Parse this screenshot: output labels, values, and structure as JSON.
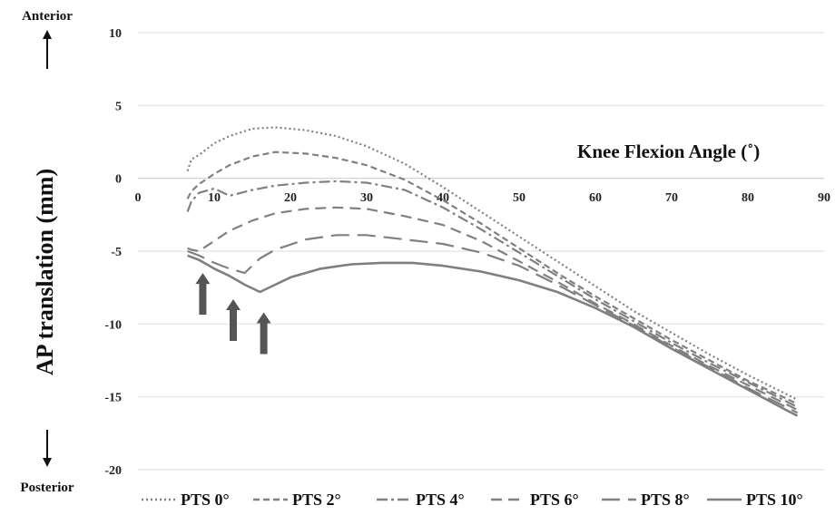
{
  "chart_data": {
    "type": "line",
    "xlabel": "Knee Flexion Angle (˚)",
    "ylabel": "AP translation (mm)",
    "xlim": [
      0,
      90
    ],
    "ylim": [
      -20,
      10
    ],
    "x_ticks": [
      0,
      10,
      20,
      30,
      40,
      50,
      60,
      70,
      80,
      90
    ],
    "y_ticks": [
      10,
      5,
      0,
      -5,
      -10,
      -15,
      -20
    ],
    "grid": "horizontal",
    "legend_position": "bottom",
    "annotations": {
      "top": "Anterior",
      "bottom": "Posterior"
    },
    "arrow_markers_x": [
      8.5,
      12.5,
      16.5
    ],
    "series": [
      {
        "name": "PTS 0°",
        "style": "dotted",
        "color": "#808080",
        "points": [
          [
            6.5,
            0.5
          ],
          [
            7,
            1.3
          ],
          [
            8,
            1.6
          ],
          [
            10,
            2.4
          ],
          [
            12,
            2.9
          ],
          [
            15,
            3.4
          ],
          [
            18,
            3.5
          ],
          [
            22,
            3.3
          ],
          [
            26,
            2.9
          ],
          [
            30,
            2.2
          ],
          [
            35,
            1.0
          ],
          [
            40,
            -0.6
          ],
          [
            45,
            -2.3
          ],
          [
            50,
            -4.0
          ],
          [
            55,
            -5.7
          ],
          [
            60,
            -7.4
          ],
          [
            65,
            -9.1
          ],
          [
            70,
            -10.6
          ],
          [
            75,
            -12.1
          ],
          [
            80,
            -13.5
          ],
          [
            85,
            -14.8
          ],
          [
            86.5,
            -15.2
          ]
        ]
      },
      {
        "name": "PTS 2°",
        "style": "short-dash",
        "color": "#808080",
        "points": [
          [
            6.5,
            -1.4
          ],
          [
            7,
            -0.9
          ],
          [
            8,
            -0.4
          ],
          [
            10,
            0.3
          ],
          [
            12,
            0.9
          ],
          [
            15,
            1.5
          ],
          [
            18,
            1.8
          ],
          [
            22,
            1.7
          ],
          [
            26,
            1.4
          ],
          [
            30,
            0.9
          ],
          [
            35,
            -0.1
          ],
          [
            40,
            -1.5
          ],
          [
            45,
            -3.1
          ],
          [
            50,
            -4.8
          ],
          [
            55,
            -6.5
          ],
          [
            60,
            -8.1
          ],
          [
            65,
            -9.6
          ],
          [
            70,
            -11.1
          ],
          [
            75,
            -12.5
          ],
          [
            80,
            -13.9
          ],
          [
            85,
            -15.1
          ],
          [
            86.5,
            -15.5
          ]
        ]
      },
      {
        "name": "PTS 4°",
        "style": "dash-dot",
        "color": "#808080",
        "points": [
          [
            6.5,
            -2.3
          ],
          [
            7,
            -1.6
          ],
          [
            8,
            -1.0
          ],
          [
            10,
            -0.7
          ],
          [
            12,
            -1.2
          ],
          [
            15,
            -0.8
          ],
          [
            18,
            -0.5
          ],
          [
            22,
            -0.3
          ],
          [
            26,
            -0.2
          ],
          [
            30,
            -0.3
          ],
          [
            35,
            -0.8
          ],
          [
            40,
            -2.0
          ],
          [
            45,
            -3.5
          ],
          [
            50,
            -5.1
          ],
          [
            55,
            -6.7
          ],
          [
            60,
            -8.3
          ],
          [
            65,
            -9.8
          ],
          [
            70,
            -11.3
          ],
          [
            75,
            -12.7
          ],
          [
            80,
            -14.0
          ],
          [
            85,
            -15.3
          ],
          [
            86.5,
            -15.7
          ]
        ]
      },
      {
        "name": "PTS 6°",
        "style": "dash",
        "color": "#808080",
        "points": [
          [
            6.5,
            -4.8
          ],
          [
            7,
            -4.9
          ],
          [
            8,
            -5.0
          ],
          [
            10,
            -4.3
          ],
          [
            12,
            -3.6
          ],
          [
            15,
            -2.9
          ],
          [
            18,
            -2.4
          ],
          [
            22,
            -2.1
          ],
          [
            26,
            -2.0
          ],
          [
            30,
            -2.1
          ],
          [
            35,
            -2.6
          ],
          [
            40,
            -3.2
          ],
          [
            45,
            -4.3
          ],
          [
            50,
            -5.7
          ],
          [
            55,
            -7.1
          ],
          [
            60,
            -8.6
          ],
          [
            65,
            -10.0
          ],
          [
            70,
            -11.5
          ],
          [
            75,
            -12.9
          ],
          [
            80,
            -14.2
          ],
          [
            85,
            -15.5
          ],
          [
            86.5,
            -15.9
          ]
        ]
      },
      {
        "name": "PTS 8°",
        "style": "long-dash",
        "color": "#808080",
        "points": [
          [
            6.5,
            -5.0
          ],
          [
            7,
            -5.1
          ],
          [
            8,
            -5.3
          ],
          [
            10,
            -5.8
          ],
          [
            12,
            -6.2
          ],
          [
            14,
            -6.5
          ],
          [
            16,
            -5.5
          ],
          [
            18,
            -4.9
          ],
          [
            22,
            -4.2
          ],
          [
            26,
            -3.9
          ],
          [
            30,
            -3.9
          ],
          [
            35,
            -4.2
          ],
          [
            40,
            -4.5
          ],
          [
            45,
            -5.1
          ],
          [
            50,
            -6.0
          ],
          [
            55,
            -7.3
          ],
          [
            60,
            -8.7
          ],
          [
            65,
            -10.1
          ],
          [
            70,
            -11.6
          ],
          [
            75,
            -13.0
          ],
          [
            80,
            -14.4
          ],
          [
            85,
            -15.7
          ],
          [
            86.5,
            -16.1
          ]
        ]
      },
      {
        "name": "PTS 10°",
        "style": "solid",
        "color": "#7f7f7f",
        "points": [
          [
            6.5,
            -5.3
          ],
          [
            8,
            -5.6
          ],
          [
            10,
            -6.2
          ],
          [
            12,
            -6.7
          ],
          [
            14,
            -7.3
          ],
          [
            16,
            -7.8
          ],
          [
            18,
            -7.3
          ],
          [
            20,
            -6.8
          ],
          [
            24,
            -6.2
          ],
          [
            28,
            -5.9
          ],
          [
            32,
            -5.8
          ],
          [
            36,
            -5.8
          ],
          [
            40,
            -6.0
          ],
          [
            45,
            -6.4
          ],
          [
            50,
            -7.0
          ],
          [
            55,
            -7.8
          ],
          [
            60,
            -8.9
          ],
          [
            65,
            -10.2
          ],
          [
            70,
            -11.7
          ],
          [
            75,
            -13.1
          ],
          [
            80,
            -14.5
          ],
          [
            85,
            -15.9
          ],
          [
            86.5,
            -16.3
          ]
        ]
      }
    ]
  }
}
